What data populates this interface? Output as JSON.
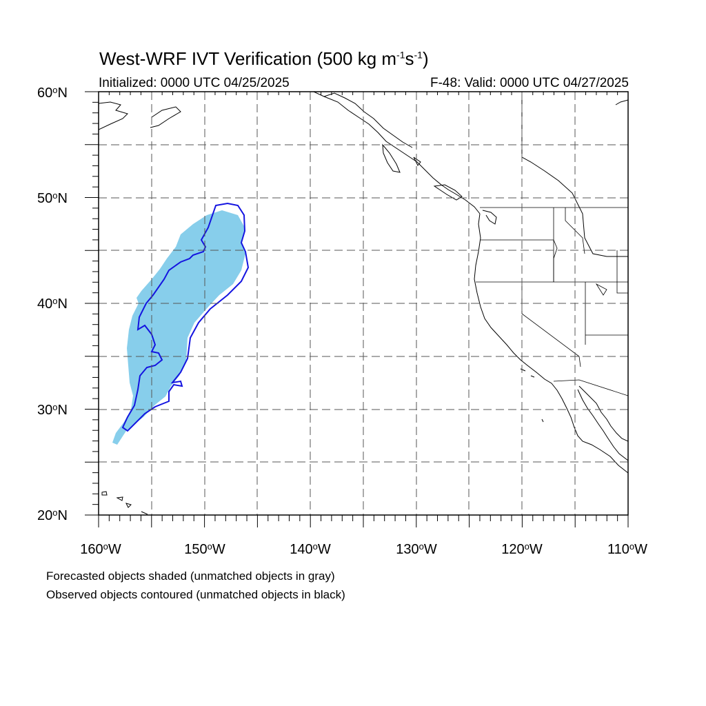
{
  "header": {
    "title_main": "West-WRF IVT Verification (500 kg m",
    "title_exp1": "-1",
    "title_mid": "s",
    "title_exp2": "-1",
    "title_end": ")",
    "initialized": "Initialized: 0000 UTC 04/25/2025",
    "valid": "F-48: Valid: 0000 UTC 04/27/2025"
  },
  "lat_labels": [
    {
      "deg": "60",
      "suffix": "N"
    },
    {
      "deg": "50",
      "suffix": "N"
    },
    {
      "deg": "40",
      "suffix": "N"
    },
    {
      "deg": "30",
      "suffix": "N"
    },
    {
      "deg": "20",
      "suffix": "N"
    }
  ],
  "lon_labels": [
    {
      "deg": "160",
      "suffix": "W"
    },
    {
      "deg": "150",
      "suffix": "W"
    },
    {
      "deg": "140",
      "suffix": "W"
    },
    {
      "deg": "130",
      "suffix": "W"
    },
    {
      "deg": "120",
      "suffix": "W"
    },
    {
      "deg": "110",
      "suffix": "W"
    }
  ],
  "footnotes": {
    "line1": "Forecasted objects shaded (unmatched objects in gray)",
    "line2": "Observed objects contoured (unmatched objects in black)"
  },
  "map": {
    "extent": {
      "lon": [
        -160,
        -110
      ],
      "lat": [
        20,
        60
      ]
    },
    "grid_style": "dashed",
    "colors": {
      "forecast_fill": "#87ceeb",
      "observed_contour": "#1414e0",
      "coastline": "#000000",
      "grid": "#555555"
    }
  }
}
